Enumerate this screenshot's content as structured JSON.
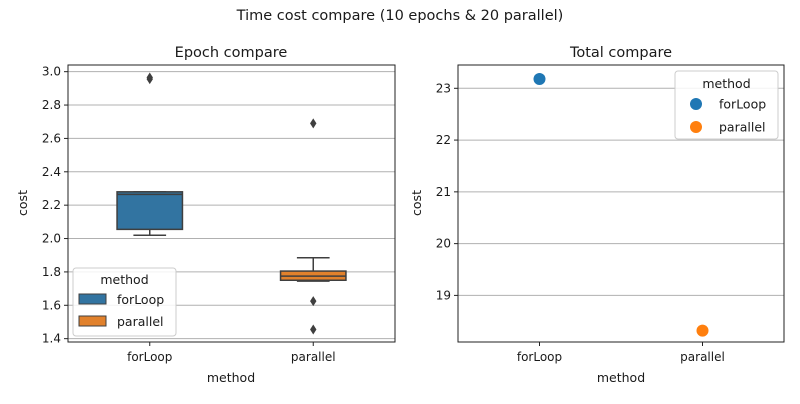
{
  "figure": {
    "suptitle": "Time cost compare (10 epochs & 20 parallel)"
  },
  "chart_data": [
    {
      "type": "box",
      "title": "Epoch compare",
      "xlabel": "method",
      "ylabel": "cost",
      "categories": [
        "forLoop",
        "parallel"
      ],
      "ylim": [
        1.38,
        3.04
      ],
      "yticks": [
        1.4,
        1.6,
        1.8,
        2.0,
        2.2,
        2.4,
        2.6,
        2.8,
        3.0
      ],
      "ytick_labels": [
        "1.4",
        "1.6",
        "1.8",
        "2.0",
        "2.2",
        "2.4",
        "2.6",
        "2.8",
        "3.0"
      ],
      "grid": "y",
      "legend": {
        "title": "method",
        "placement": "lower-left",
        "entries": [
          "forLoop",
          "parallel"
        ]
      },
      "series": [
        {
          "name": "forLoop",
          "color": "#3274a1",
          "q1": 2.055,
          "median": 2.265,
          "q3": 2.28,
          "whisker_low": 2.02,
          "whisker_high": 2.28,
          "outliers": [
            2.955,
            2.965
          ]
        },
        {
          "name": "parallel",
          "color": "#e1812c",
          "q1": 1.75,
          "median": 1.775,
          "q3": 1.805,
          "whisker_low": 1.745,
          "whisker_high": 1.885,
          "outliers": [
            2.69,
            1.625,
            1.455
          ]
        }
      ]
    },
    {
      "type": "scatter",
      "title": "Total compare",
      "xlabel": "method",
      "ylabel": "cost",
      "categories": [
        "forLoop",
        "parallel"
      ],
      "ylim": [
        18.1,
        23.45
      ],
      "yticks": [
        19,
        20,
        21,
        22,
        23
      ],
      "ytick_labels": [
        "19",
        "20",
        "21",
        "22",
        "23"
      ],
      "grid": "y",
      "legend": {
        "title": "method",
        "placement": "top-right",
        "entries": [
          "forLoop",
          "parallel"
        ]
      },
      "series": [
        {
          "name": "forLoop",
          "color": "#1f77b4",
          "x": "forLoop",
          "y": 23.18
        },
        {
          "name": "parallel",
          "color": "#ff7f0e",
          "x": "parallel",
          "y": 18.32
        }
      ]
    }
  ]
}
